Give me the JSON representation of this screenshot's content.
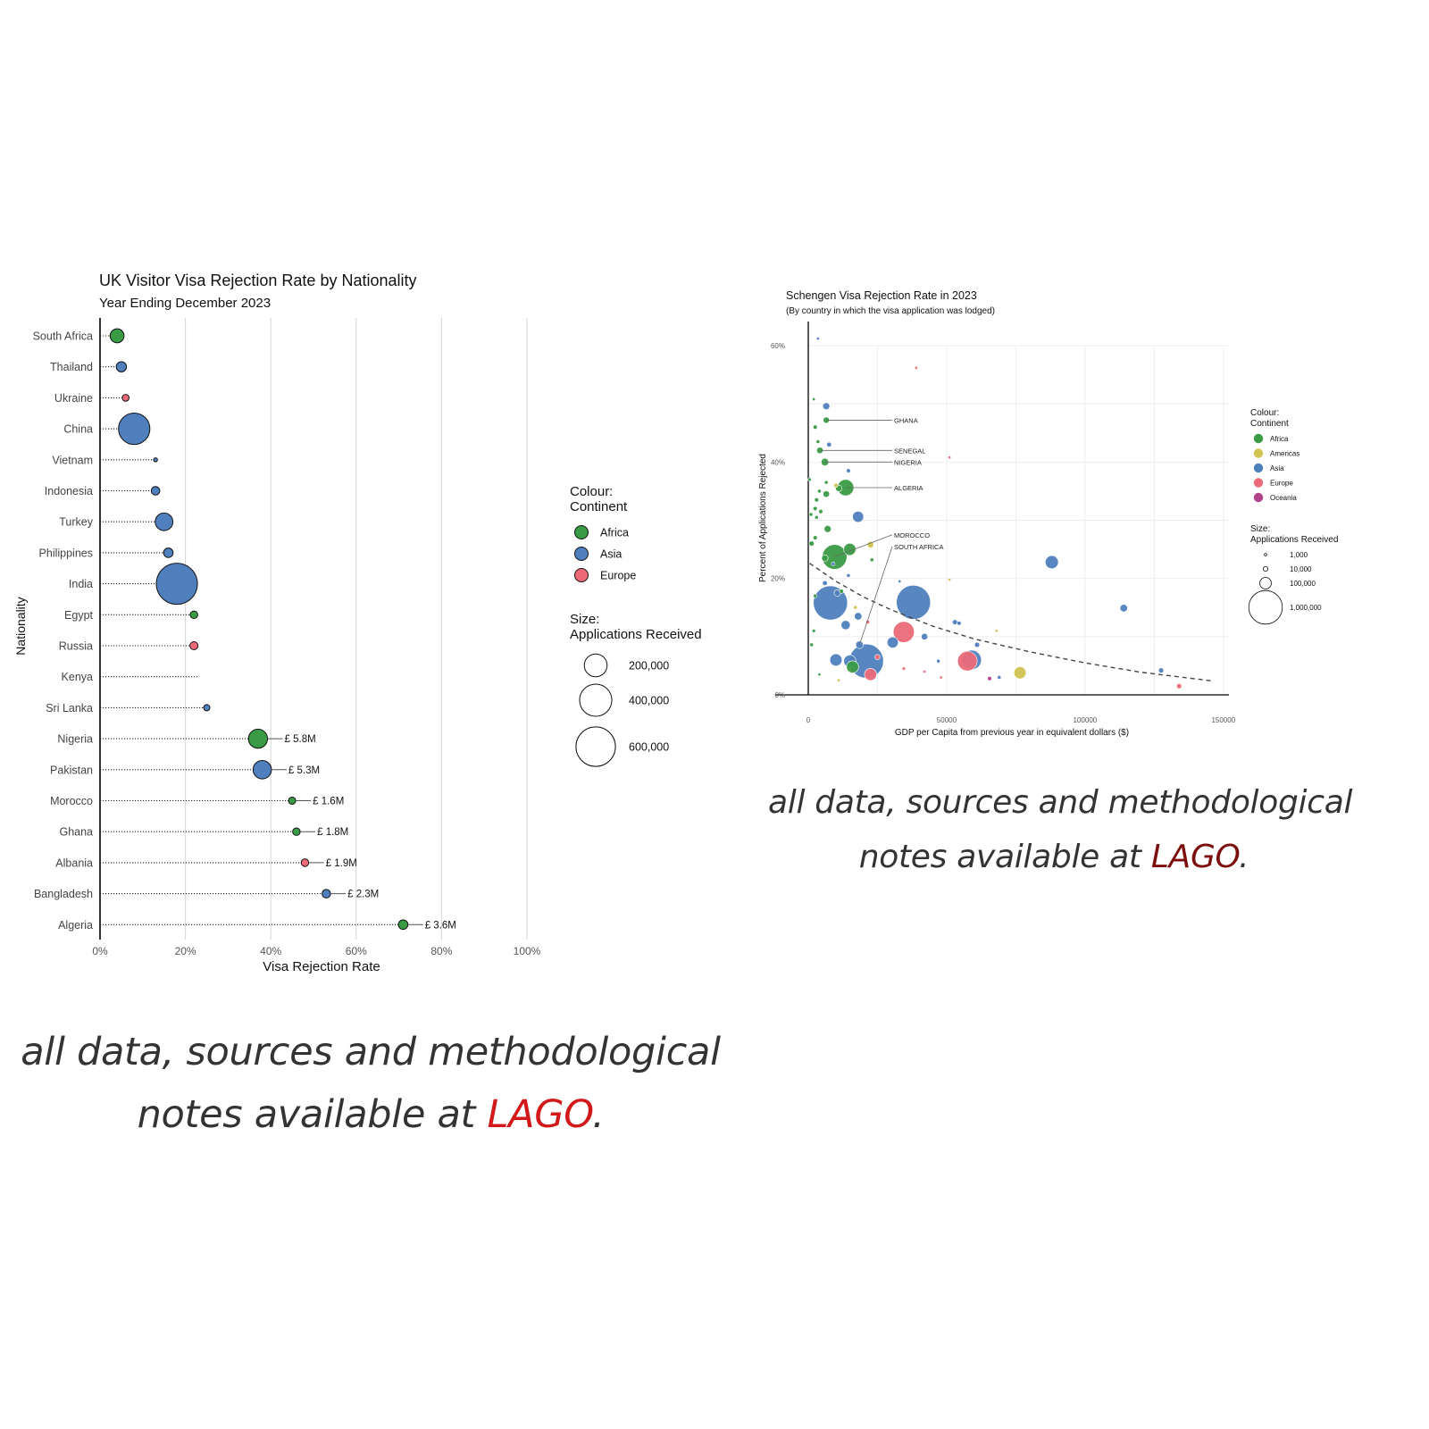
{
  "colors": {
    "africa": "#3a9b45",
    "asia": "#4f7fbd",
    "europe": "#ec6a78",
    "americas": "#d2c24f",
    "oceania": "#b0418b",
    "lago_left": "#d21818",
    "lago_right": "#7d0e0e",
    "footer_text": "#333333"
  },
  "chart_data": [
    {
      "type": "scatter",
      "subtype": "lollipop-bubble",
      "title": "UK Visitor Visa Rejection Rate by Nationality",
      "subtitle": "Year Ending December 2023",
      "xlabel": "Visa Rejection Rate",
      "ylabel": "Nationality",
      "xlim": [
        0,
        100
      ],
      "x_ticks": [
        "0%",
        "20%",
        "40%",
        "60%",
        "80%",
        "100%"
      ],
      "grid": "vertical",
      "legend_placement": "right",
      "legend": {
        "colour_title_line1": "Colour:",
        "colour_title_line2": "Continent",
        "colour_items": [
          {
            "label": "Africa",
            "continent": "africa"
          },
          {
            "label": "Asia",
            "continent": "asia"
          },
          {
            "label": "Europe",
            "continent": "europe"
          }
        ],
        "size_title_line1": "Size:",
        "size_title_line2": "Applications Received",
        "size_items": [
          {
            "label": "200,000",
            "value": 200000
          },
          {
            "label": "400,000",
            "value": 400000
          },
          {
            "label": "600,000",
            "value": 600000
          }
        ]
      },
      "points": [
        {
          "nationality": "South Africa",
          "rate": 4,
          "applications": 75000,
          "continent": "africa",
          "cost_label": ""
        },
        {
          "nationality": "Thailand",
          "rate": 5,
          "applications": 40000,
          "continent": "asia",
          "cost_label": ""
        },
        {
          "nationality": "Ukraine",
          "rate": 6,
          "applications": 18000,
          "continent": "europe",
          "cost_label": ""
        },
        {
          "nationality": "China",
          "rate": 8,
          "applications": 380000,
          "continent": "asia",
          "cost_label": ""
        },
        {
          "nationality": "Vietnam",
          "rate": 13,
          "applications": 4000,
          "continent": "asia",
          "cost_label": ""
        },
        {
          "nationality": "Indonesia",
          "rate": 13,
          "applications": 28000,
          "continent": "asia",
          "cost_label": ""
        },
        {
          "nationality": "Turkey",
          "rate": 15,
          "applications": 120000,
          "continent": "asia",
          "cost_label": ""
        },
        {
          "nationality": "Philippines",
          "rate": 16,
          "applications": 35000,
          "continent": "asia",
          "cost_label": ""
        },
        {
          "nationality": "India",
          "rate": 18,
          "applications": 650000,
          "continent": "asia",
          "cost_label": ""
        },
        {
          "nationality": "Egypt",
          "rate": 22,
          "applications": 22000,
          "continent": "africa",
          "cost_label": ""
        },
        {
          "nationality": "Russia",
          "rate": 22,
          "applications": 25000,
          "continent": "europe",
          "cost_label": ""
        },
        {
          "nationality": "Kenya",
          "rate": 23,
          "applications": 0,
          "continent": "africa",
          "cost_label": ""
        },
        {
          "nationality": "Sri Lanka",
          "rate": 25,
          "applications": 15000,
          "continent": "asia",
          "cost_label": ""
        },
        {
          "nationality": "Nigeria",
          "rate": 37,
          "applications": 140000,
          "continent": "africa",
          "cost_label": "£ 5.8M"
        },
        {
          "nationality": "Pakistan",
          "rate": 38,
          "applications": 130000,
          "continent": "asia",
          "cost_label": "£ 5.3M"
        },
        {
          "nationality": "Morocco",
          "rate": 45,
          "applications": 20000,
          "continent": "africa",
          "cost_label": "£ 1.6M"
        },
        {
          "nationality": "Ghana",
          "rate": 46,
          "applications": 22000,
          "continent": "africa",
          "cost_label": "£ 1.8M"
        },
        {
          "nationality": "Albania",
          "rate": 48,
          "applications": 22000,
          "continent": "europe",
          "cost_label": "£ 1.9M"
        },
        {
          "nationality": "Bangladesh",
          "rate": 53,
          "applications": 28000,
          "continent": "asia",
          "cost_label": "£ 2.3M"
        },
        {
          "nationality": "Algeria",
          "rate": 71,
          "applications": 35000,
          "continent": "africa",
          "cost_label": "£ 3.6M"
        }
      ]
    },
    {
      "type": "scatter",
      "subtype": "bubble",
      "title": "Schengen Visa Rejection Rate in 2023",
      "subtitle": "(By country in which the visa application was lodged)",
      "xlabel": "GDP per Capita from previous year in equivalent dollars ($)",
      "ylabel": "Percent of Applications Rejected",
      "xlim": [
        0,
        152000
      ],
      "ylim": [
        0,
        60
      ],
      "x_ticks": [
        "0",
        "50000",
        "100000",
        "150000"
      ],
      "y_ticks": [
        "0%",
        "20%",
        "40%",
        "60%"
      ],
      "grid": "both",
      "legend_placement": "right",
      "trend": {
        "style": "dashed",
        "x": [
          500,
          10000,
          20000,
          30000,
          45000,
          60000,
          80000,
          100000,
          120000,
          146000
        ],
        "y": [
          22.6,
          19.5,
          16.8,
          14.6,
          11.8,
          9.6,
          7.4,
          5.5,
          3.9,
          2.4
        ]
      },
      "legend": {
        "colour_title_line1": "Colour:",
        "colour_title_line2": "Continent",
        "colour_items": [
          {
            "label": "Africa",
            "continent": "africa"
          },
          {
            "label": "Americas",
            "continent": "americas"
          },
          {
            "label": "Asia",
            "continent": "asia"
          },
          {
            "label": "Europe",
            "continent": "europe"
          },
          {
            "label": "Oceania",
            "continent": "oceania"
          }
        ],
        "size_title_line1": "Size:",
        "size_title_line2": "Applications Received",
        "size_items": [
          {
            "label": "1,000",
            "value": 1000
          },
          {
            "label": "10,000",
            "value": 10000
          },
          {
            "label": "100,000",
            "value": 100000
          },
          {
            "label": "1,000,000",
            "value": 1000000
          }
        ]
      },
      "annotations": [
        {
          "label": "GHANA",
          "x": 6500,
          "y": 47.2,
          "text_x": 31000,
          "text_y": 47.2
        },
        {
          "label": "SENEGAL",
          "x": 4200,
          "y": 42.0,
          "text_x": 31000,
          "text_y": 42.0
        },
        {
          "label": "NIGERIA",
          "x": 6000,
          "y": 40.0,
          "text_x": 31000,
          "text_y": 40.0
        },
        {
          "label": "ALGERIA",
          "x": 13500,
          "y": 35.6,
          "text_x": 31000,
          "text_y": 35.6
        },
        {
          "label": "MOROCCO",
          "x": 9500,
          "y": 23.7,
          "text_x": 31000,
          "text_y": 27.5
        },
        {
          "label": "SOUTH AFRICA",
          "x": 18500,
          "y": 8.6,
          "text_x": 31000,
          "text_y": 25.5
        }
      ],
      "points": [
        {
          "x": 3500,
          "y": 61.2,
          "applications": 1000,
          "continent": "asia"
        },
        {
          "x": 39000,
          "y": 56.2,
          "applications": 1000,
          "continent": "europe"
        },
        {
          "x": 2000,
          "y": 50.8,
          "applications": 1000,
          "continent": "africa"
        },
        {
          "x": 6500,
          "y": 49.6,
          "applications": 25000,
          "continent": "asia"
        },
        {
          "x": 6500,
          "y": 47.2,
          "applications": 18000,
          "continent": "africa"
        },
        {
          "x": 2500,
          "y": 46.0,
          "applications": 5000,
          "continent": "africa"
        },
        {
          "x": 3500,
          "y": 43.5,
          "applications": 3000,
          "continent": "africa"
        },
        {
          "x": 7500,
          "y": 43.0,
          "applications": 8000,
          "continent": "asia"
        },
        {
          "x": 4200,
          "y": 42.0,
          "applications": 20000,
          "continent": "africa"
        },
        {
          "x": 51000,
          "y": 40.8,
          "applications": 1000,
          "continent": "europe"
        },
        {
          "x": 6000,
          "y": 40.0,
          "applications": 30000,
          "continent": "africa"
        },
        {
          "x": 14500,
          "y": 38.5,
          "applications": 5000,
          "continent": "asia"
        },
        {
          "x": 500,
          "y": 37.0,
          "applications": 2000,
          "continent": "africa"
        },
        {
          "x": 6500,
          "y": 36.5,
          "applications": 3000,
          "continent": "africa"
        },
        {
          "x": 10000,
          "y": 36.0,
          "applications": 5000,
          "continent": "americas"
        },
        {
          "x": 4000,
          "y": 35.0,
          "applications": 3000,
          "continent": "africa"
        },
        {
          "x": 11000,
          "y": 35.5,
          "applications": 20000,
          "continent": "africa"
        },
        {
          "x": 13500,
          "y": 35.6,
          "applications": 200000,
          "continent": "africa"
        },
        {
          "x": 6500,
          "y": 34.5,
          "applications": 20000,
          "continent": "africa"
        },
        {
          "x": 3000,
          "y": 33.5,
          "applications": 5000,
          "continent": "africa"
        },
        {
          "x": 1000,
          "y": 31.0,
          "applications": 3000,
          "continent": "africa"
        },
        {
          "x": 2500,
          "y": 32.0,
          "applications": 5000,
          "continent": "africa"
        },
        {
          "x": 4500,
          "y": 31.5,
          "applications": 5000,
          "continent": "africa"
        },
        {
          "x": 3000,
          "y": 30.5,
          "applications": 3000,
          "continent": "africa"
        },
        {
          "x": 18000,
          "y": 30.6,
          "applications": 80000,
          "continent": "asia"
        },
        {
          "x": 7000,
          "y": 28.5,
          "applications": 25000,
          "continent": "africa"
        },
        {
          "x": 2500,
          "y": 27.0,
          "applications": 5000,
          "continent": "africa"
        },
        {
          "x": 1200,
          "y": 26.0,
          "applications": 10000,
          "continent": "africa"
        },
        {
          "x": 22500,
          "y": 25.8,
          "applications": 20000,
          "continent": "americas"
        },
        {
          "x": 15000,
          "y": 25.0,
          "applications": 100000,
          "continent": "africa"
        },
        {
          "x": 9500,
          "y": 23.7,
          "applications": 500000,
          "continent": "africa"
        },
        {
          "x": 6000,
          "y": 23.5,
          "applications": 20000,
          "continent": "africa"
        },
        {
          "x": 23000,
          "y": 23.2,
          "applications": 3000,
          "continent": "africa"
        },
        {
          "x": 88000,
          "y": 22.8,
          "applications": 120000,
          "continent": "asia"
        },
        {
          "x": 9000,
          "y": 22.5,
          "applications": 3000,
          "continent": "asia"
        },
        {
          "x": 14500,
          "y": 20.5,
          "applications": 3000,
          "continent": "asia"
        },
        {
          "x": 33000,
          "y": 19.5,
          "applications": 1000,
          "continent": "asia"
        },
        {
          "x": 51000,
          "y": 19.8,
          "applications": 1000,
          "continent": "americas"
        },
        {
          "x": 6000,
          "y": 19.2,
          "applications": 8000,
          "continent": "asia"
        },
        {
          "x": 10500,
          "y": 17.5,
          "applications": 20000,
          "continent": "asia"
        },
        {
          "x": 12000,
          "y": 17.8,
          "applications": 5000,
          "continent": "africa"
        },
        {
          "x": 2500,
          "y": 17.0,
          "applications": 3000,
          "continent": "africa"
        },
        {
          "x": 8000,
          "y": 15.8,
          "applications": 1000000,
          "continent": "asia"
        },
        {
          "x": 38000,
          "y": 15.9,
          "applications": 1000000,
          "continent": "asia"
        },
        {
          "x": 114000,
          "y": 14.9,
          "applications": 30000,
          "continent": "asia"
        },
        {
          "x": 17000,
          "y": 15.0,
          "applications": 3000,
          "continent": "americas"
        },
        {
          "x": 18000,
          "y": 13.5,
          "applications": 30000,
          "continent": "asia"
        },
        {
          "x": 13500,
          "y": 12.0,
          "applications": 50000,
          "continent": "asia"
        },
        {
          "x": 53000,
          "y": 12.5,
          "applications": 10000,
          "continent": "asia"
        },
        {
          "x": 54500,
          "y": 12.3,
          "applications": 5000,
          "continent": "asia"
        },
        {
          "x": 21500,
          "y": 12.5,
          "applications": 3000,
          "continent": "europe"
        },
        {
          "x": 68000,
          "y": 11.0,
          "applications": 1000,
          "continent": "americas"
        },
        {
          "x": 2000,
          "y": 11.0,
          "applications": 2000,
          "continent": "africa"
        },
        {
          "x": 34500,
          "y": 10.8,
          "applications": 350000,
          "continent": "europe"
        },
        {
          "x": 42000,
          "y": 10.0,
          "applications": 20000,
          "continent": "asia"
        },
        {
          "x": 30500,
          "y": 9.0,
          "applications": 80000,
          "continent": "asia"
        },
        {
          "x": 1200,
          "y": 8.6,
          "applications": 3000,
          "continent": "africa"
        },
        {
          "x": 18500,
          "y": 8.6,
          "applications": 30000,
          "continent": "asia"
        },
        {
          "x": 61000,
          "y": 8.6,
          "applications": 10000,
          "continent": "asia"
        },
        {
          "x": 10000,
          "y": 6.0,
          "applications": 100000,
          "continent": "asia"
        },
        {
          "x": 15000,
          "y": 5.8,
          "applications": 100000,
          "continent": "asia"
        },
        {
          "x": 21000,
          "y": 5.8,
          "applications": 1000000,
          "continent": "asia"
        },
        {
          "x": 59000,
          "y": 6.0,
          "applications": 300000,
          "continent": "asia"
        },
        {
          "x": 57500,
          "y": 5.8,
          "applications": 300000,
          "continent": "europe"
        },
        {
          "x": 16000,
          "y": 4.8,
          "applications": 100000,
          "continent": "africa"
        },
        {
          "x": 25000,
          "y": 6.5,
          "applications": 10000,
          "continent": "europe"
        },
        {
          "x": 47000,
          "y": 5.8,
          "applications": 3000,
          "continent": "asia"
        },
        {
          "x": 76500,
          "y": 3.8,
          "applications": 100000,
          "continent": "americas"
        },
        {
          "x": 22500,
          "y": 3.5,
          "applications": 100000,
          "continent": "europe"
        },
        {
          "x": 34500,
          "y": 4.5,
          "applications": 2000,
          "continent": "europe"
        },
        {
          "x": 127500,
          "y": 4.2,
          "applications": 10000,
          "continent": "asia"
        },
        {
          "x": 65500,
          "y": 2.8,
          "applications": 5000,
          "continent": "oceania"
        },
        {
          "x": 69000,
          "y": 3.0,
          "applications": 3000,
          "continent": "asia"
        },
        {
          "x": 134000,
          "y": 1.5,
          "applications": 10000,
          "continent": "europe"
        },
        {
          "x": 4000,
          "y": 3.5,
          "applications": 1000,
          "continent": "africa"
        },
        {
          "x": 11000,
          "y": 2.5,
          "applications": 1000,
          "continent": "americas"
        },
        {
          "x": 42000,
          "y": 4.0,
          "applications": 1000,
          "continent": "europe"
        },
        {
          "x": 48000,
          "y": 3.0,
          "applications": 1000,
          "continent": "europe"
        }
      ]
    }
  ],
  "footer_left": {
    "line1": "all data, sources and methodological",
    "line2_prefix": "notes available at ",
    "link": "LAGO",
    "suffix": "."
  },
  "footer_right": {
    "line1": "all data, sources and methodological",
    "line2_prefix": "notes available at ",
    "link": "LAGO",
    "suffix": "."
  }
}
